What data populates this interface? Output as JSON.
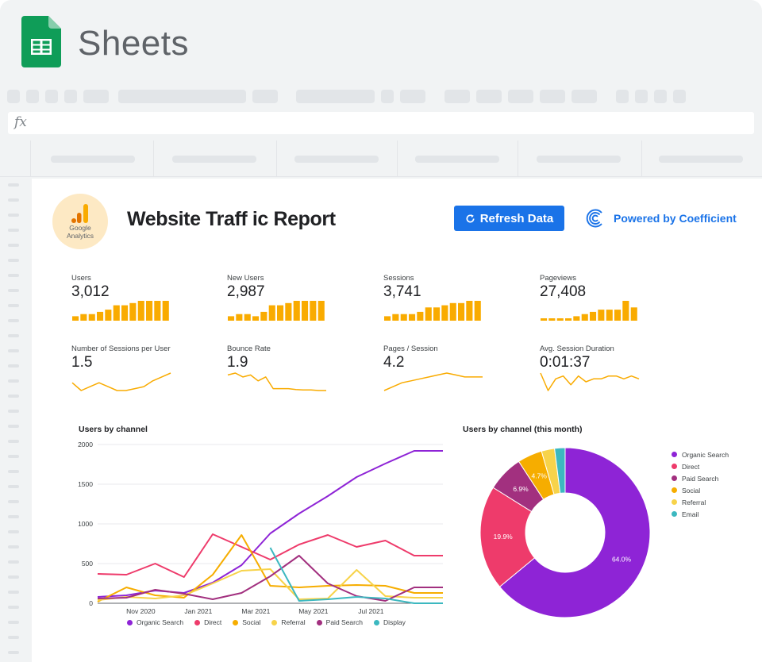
{
  "app": {
    "title": "Sheets",
    "formula_label": "fx"
  },
  "report": {
    "title": "Website Traff ic Report",
    "ga_logo_text": [
      "Google",
      "Analytics"
    ],
    "refresh_label": "Refresh Data",
    "powered_label": "Powered by Coefficient"
  },
  "colors": {
    "accent": "#1a73e8",
    "spark": "#f9ab00",
    "sheets_green": "#0f9d58",
    "channels": {
      "Organic Search": "#8e24d6",
      "Direct": "#ee3b6b",
      "Social": "#f6ad00",
      "Referral": "#f7d34a",
      "Paid Search": "#a2307f",
      "Display": "#3cb8c0",
      "Email": "#3cb8c0"
    }
  },
  "metrics": [
    {
      "label": "Users",
      "value": "3,012",
      "kind": "bars",
      "spark": [
        2,
        3,
        3,
        4,
        5,
        7,
        7,
        8,
        9,
        9,
        9,
        9
      ]
    },
    {
      "label": "New Users",
      "value": "2,987",
      "kind": "bars",
      "spark": [
        2,
        3,
        3,
        2,
        4,
        7,
        7,
        8,
        9,
        9,
        9,
        9
      ]
    },
    {
      "label": "Sessions",
      "value": "3,741",
      "kind": "bars",
      "spark": [
        2,
        3,
        3,
        3,
        4,
        6,
        6,
        7,
        8,
        8,
        9,
        9
      ]
    },
    {
      "label": "Pageviews",
      "value": "27,408",
      "kind": "bars",
      "spark": [
        1,
        1,
        1,
        1,
        2,
        3,
        4,
        5,
        5,
        5,
        9,
        6
      ]
    },
    {
      "label": "Number of Sessions per User",
      "value": "1.5",
      "kind": "line",
      "spark": [
        5,
        1,
        3,
        5,
        3,
        1,
        1,
        2,
        3,
        6,
        8,
        10
      ]
    },
    {
      "label": "Bounce Rate",
      "value": "1.9",
      "kind": "line",
      "spark": [
        9,
        10,
        8,
        9,
        6,
        8,
        2,
        2,
        2,
        1.5,
        1.3,
        1.3,
        1,
        1
      ]
    },
    {
      "label": "Pages / Session",
      "value": "4.2",
      "kind": "line",
      "spark": [
        1,
        3,
        5,
        6,
        7,
        8,
        9,
        10,
        9,
        8,
        8,
        8
      ]
    },
    {
      "label": "Avg. Session Duration",
      "value": "0:01:37",
      "kind": "line",
      "spark": [
        7,
        1,
        5,
        6,
        3,
        6,
        4,
        5,
        5,
        6,
        6,
        5,
        6,
        5
      ]
    }
  ],
  "line_chart_title": "Users by channel",
  "pie_chart_title": "Users by channel (this month)",
  "chart_data": [
    {
      "type": "line",
      "title": "Users by channel",
      "ylim": [
        0,
        2000
      ],
      "y_ticks": [
        0,
        500,
        1000,
        1500,
        2000
      ],
      "x_tick_labels": [
        "Nov 2020",
        "Jan 2021",
        "Mar 2021",
        "May 2021",
        "Jul 2021"
      ],
      "x_tick_positions": [
        1.5,
        3.5,
        5.5,
        7.5,
        9.5
      ],
      "x": [
        0,
        1,
        2,
        3,
        4,
        5,
        6,
        7,
        8,
        9,
        10,
        11,
        12
      ],
      "series": [
        {
          "name": "Organic Search",
          "values": [
            80,
            100,
            160,
            130,
            260,
            480,
            880,
            1130,
            1350,
            1590,
            1760,
            1920,
            1920
          ]
        },
        {
          "name": "Direct",
          "values": [
            370,
            360,
            500,
            330,
            870,
            710,
            550,
            740,
            860,
            710,
            790,
            600,
            600
          ]
        },
        {
          "name": "Social",
          "values": [
            20,
            200,
            100,
            70,
            360,
            860,
            220,
            200,
            220,
            230,
            220,
            130,
            130
          ]
        },
        {
          "name": "Referral",
          "values": [
            40,
            80,
            60,
            100,
            250,
            410,
            430,
            50,
            60,
            420,
            90,
            70,
            70
          ]
        },
        {
          "name": "Paid Search",
          "values": [
            60,
            70,
            170,
            120,
            50,
            130,
            340,
            600,
            250,
            90,
            30,
            200,
            200
          ]
        },
        {
          "name": "Display",
          "values": [
            null,
            null,
            null,
            null,
            null,
            null,
            700,
            30,
            50,
            80,
            60,
            0,
            0
          ]
        }
      ]
    },
    {
      "type": "pie",
      "title": "Users by channel (this month)",
      "labels": [
        "Organic Search",
        "Direct",
        "Paid Search",
        "Social",
        "Referral",
        "Email"
      ],
      "values": [
        64.0,
        19.9,
        6.9,
        4.7,
        2.5,
        2.0
      ],
      "data_labels": [
        "64.0%",
        "19.9%",
        "6.9%",
        "4.7%",
        "",
        ""
      ],
      "legend": "right"
    }
  ]
}
